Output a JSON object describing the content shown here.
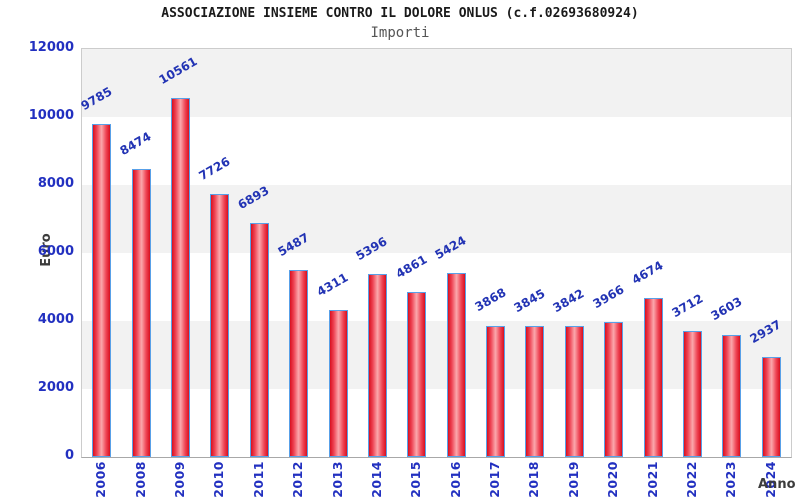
{
  "chart_data": {
    "type": "bar",
    "title": "ASSOCIAZIONE INSIEME CONTRO IL DOLORE ONLUS (c.f.02693680924)",
    "subtitle": "Importi",
    "xlabel": "Anno",
    "ylabel": "Euro",
    "categories": [
      "2006",
      "2008",
      "2009",
      "2010",
      "2011",
      "2012",
      "2013",
      "2014",
      "2015",
      "2016",
      "2017",
      "2018",
      "2019",
      "2020",
      "2021",
      "2022",
      "2023",
      "2024"
    ],
    "values": [
      9785,
      8474,
      10561,
      7726,
      6893,
      5487,
      4311,
      5396,
      4861,
      5424,
      3868,
      3845,
      3842,
      3966,
      4674,
      3712,
      3603,
      2937
    ],
    "value_labels_shown": true,
    "ylim": [
      0,
      12000
    ],
    "yticks": [
      0,
      2000,
      4000,
      6000,
      8000,
      10000,
      12000
    ],
    "grid": "alternating-horizontal-bands",
    "legend": "none",
    "colors": {
      "bar_edge_fill": "#d8101f",
      "bar_center_fill": "#fba8ad",
      "bar_border": "#58a0e8",
      "tick_label": "#2230c0",
      "value_label": "#2233b4",
      "axis_label": "#3c3c3c",
      "title": "#1a1a1a",
      "subtitle": "#555555",
      "band_gray": "#f2f2f2",
      "band_white": "#ffffff",
      "plot_border": "#cccccc"
    }
  }
}
